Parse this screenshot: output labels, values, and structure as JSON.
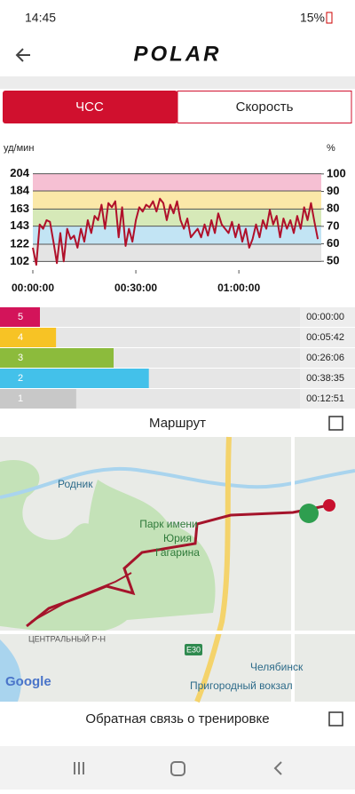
{
  "status_bar": {
    "time": "14:45",
    "battery": "15%"
  },
  "header": {
    "logo": "POLAR"
  },
  "tabs": [
    "ЧСС",
    "Скорость"
  ],
  "chart_data": {
    "type": "line",
    "y_unit": "уд/мин",
    "y2_unit": "%",
    "x": [
      0,
      1,
      2,
      3,
      4,
      5,
      6,
      7,
      8,
      9,
      10,
      11,
      12,
      13,
      14,
      15,
      16,
      17,
      18,
      19,
      20,
      21,
      22,
      23,
      24,
      25,
      26,
      27,
      28,
      29,
      30,
      31,
      32,
      33,
      34,
      35,
      36,
      37,
      38,
      39,
      40,
      41,
      42,
      43,
      44,
      45,
      46,
      47,
      48,
      49,
      50,
      51,
      52,
      53,
      54,
      55,
      56,
      57,
      58,
      59,
      60,
      61,
      62,
      63,
      64,
      65,
      66,
      67,
      68,
      69,
      70,
      71,
      72,
      73,
      74,
      75,
      76,
      77,
      78,
      79,
      80,
      81,
      82,
      83
    ],
    "series": [
      {
        "color": "#b0102a",
        "values": [
          118,
          98,
          145,
          140,
          150,
          148,
          125,
          100,
          135,
          102,
          140,
          128,
          132,
          118,
          140,
          125,
          150,
          135,
          155,
          150,
          168,
          140,
          170,
          165,
          172,
          130,
          165,
          120,
          140,
          125,
          150,
          165,
          160,
          168,
          165,
          172,
          160,
          175,
          170,
          150,
          168,
          158,
          172,
          150,
          140,
          152,
          130,
          135,
          140,
          130,
          145,
          132,
          150,
          135,
          158,
          145,
          140,
          135,
          148,
          130,
          145,
          125,
          140,
          118,
          128,
          145,
          130,
          150,
          140,
          162,
          145,
          155,
          130,
          152,
          140,
          150,
          135,
          155,
          140,
          165,
          150,
          170,
          148,
          128
        ]
      }
    ],
    "xlim": [
      0,
      84
    ],
    "xticks": [
      {
        "value": 0,
        "label": "00:00:00"
      },
      {
        "value": 30,
        "label": "00:30:00"
      },
      {
        "value": 60,
        "label": "01:00:00"
      }
    ],
    "ylim": [
      92,
      214
    ],
    "yticks": [
      102,
      122,
      143,
      163,
      184,
      204
    ],
    "y2lim": [
      45,
      105
    ],
    "y2ticks": [
      50,
      60,
      70,
      80,
      90,
      100
    ],
    "bands": [
      {
        "from": 90,
        "to": 100,
        "color": "#f6c0d3"
      },
      {
        "from": 80,
        "to": 90,
        "color": "#fbe8a8"
      },
      {
        "from": 70,
        "to": 80,
        "color": "#d6e9b8"
      },
      {
        "from": 60,
        "to": 70,
        "color": "#c2e4f4"
      },
      {
        "from": 50,
        "to": 60,
        "color": "#e4e4e4"
      }
    ]
  },
  "zones": {
    "labels": [
      "5",
      "4",
      "3",
      "2",
      "1"
    ],
    "seconds": [
      0,
      342,
      1566,
      2315,
      771
    ],
    "times": [
      "00:00:00",
      "00:05:42",
      "00:26:06",
      "00:38:35",
      "00:12:51"
    ],
    "colors": [
      "#d3145a",
      "#f7c325",
      "#8cbb3c",
      "#43c1ea",
      "#c8c8c8"
    ]
  },
  "route_title": "Маршрут",
  "map": {
    "labels": [
      "Родник",
      "Парк имени",
      "Юрия",
      "Гагарина",
      "ЦЕНТРАЛЬНЫЙ Р-Н",
      "E30",
      "Челябинск",
      "Пригородный вокзал"
    ],
    "attribution": "Google"
  },
  "feedback": "Обратная связь о тренировке"
}
